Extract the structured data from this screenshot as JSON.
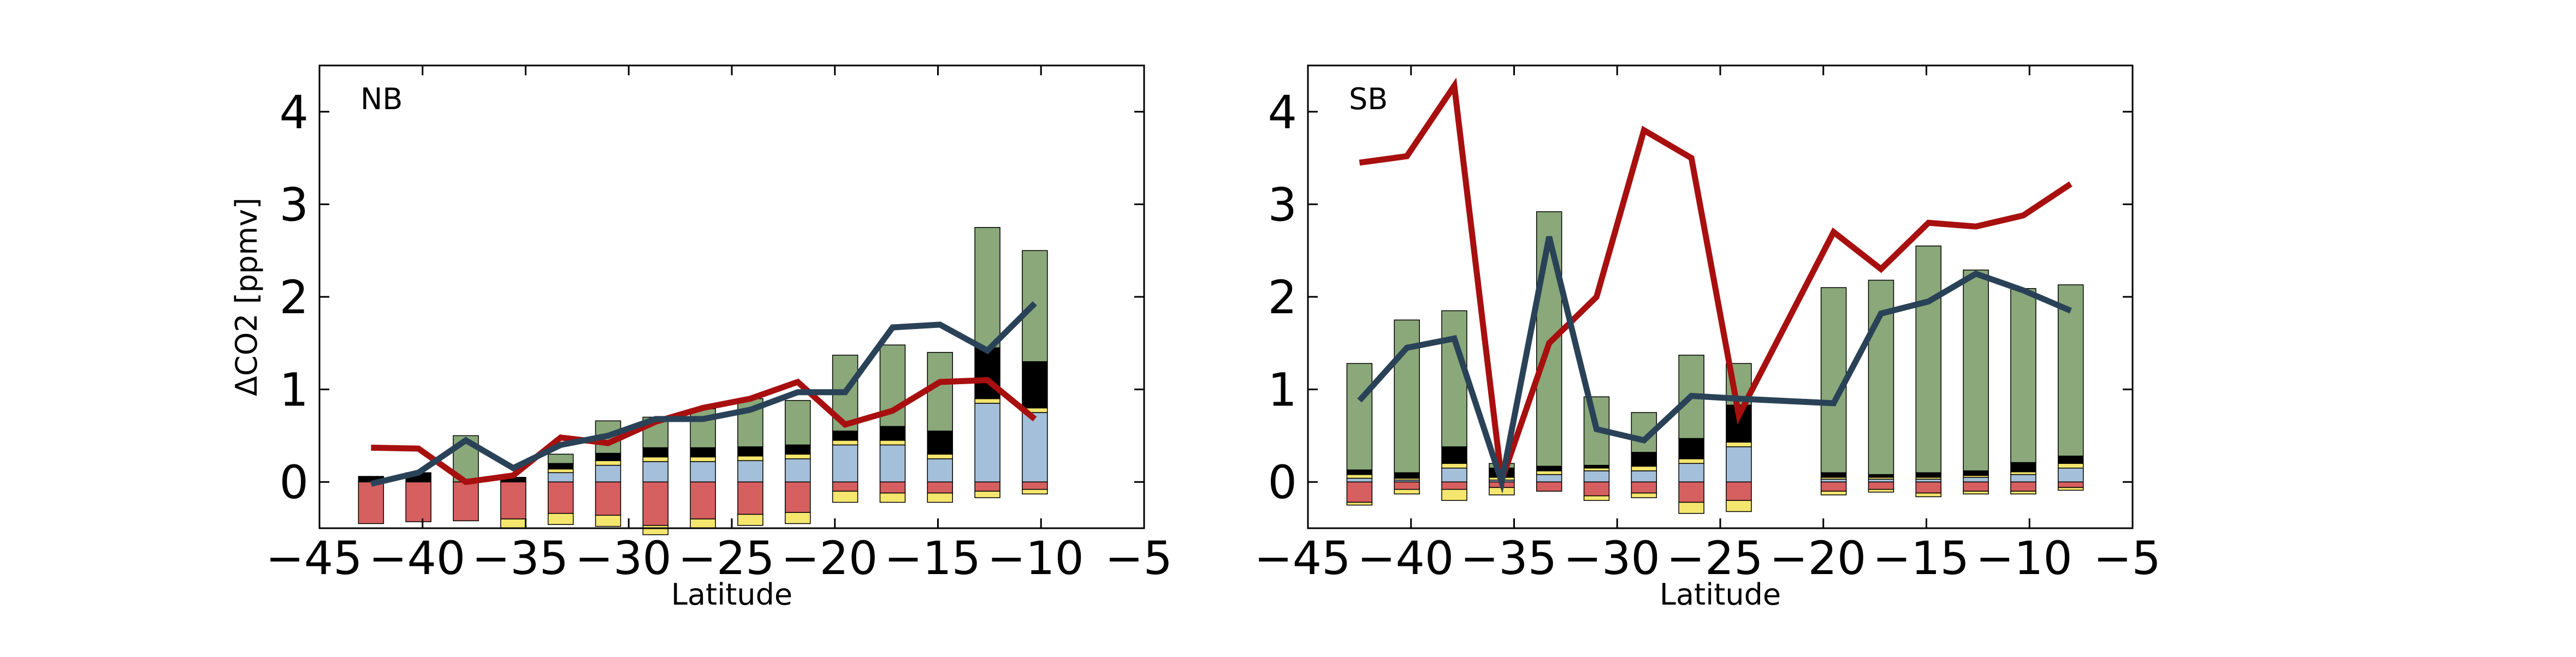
{
  "chart_data": [
    {
      "type": "bar",
      "panel_label": "NB",
      "xlabel": "Latitude",
      "ylabel": "ΔCO2 [ppmv]",
      "xlim": [
        -45,
        -5
      ],
      "ylim": [
        -0.5,
        4.5
      ],
      "xticks": [
        "−45",
        "−40",
        "−35",
        "−30",
        "−25",
        "−20",
        "−15",
        "−10",
        "−5"
      ],
      "yticks": [
        "0",
        "1",
        "2",
        "3",
        "4"
      ],
      "grid": false,
      "legend": "none",
      "bar_x": [
        -42.5,
        -40.2,
        -37.9,
        -35.6,
        -33.3,
        -31.0,
        -28.7,
        -26.4,
        -24.1,
        -21.8,
        -19.5,
        -17.2,
        -14.9,
        -12.6,
        -10.3
      ],
      "stack_components": [
        {
          "color": "#d65f5f",
          "values": [
            -0.45,
            -0.43,
            -0.42,
            -0.4,
            -0.34,
            -0.36,
            -0.47,
            -0.4,
            -0.35,
            -0.33,
            -0.1,
            -0.12,
            -0.12,
            -0.1,
            -0.08
          ]
        },
        {
          "color": "#f5e66e",
          "values": [
            0.0,
            0.0,
            0.0,
            -0.1,
            -0.12,
            -0.12,
            -0.1,
            -0.1,
            -0.12,
            -0.12,
            -0.12,
            -0.1,
            -0.1,
            -0.07,
            -0.05
          ]
        },
        {
          "color": "#a4bfd9",
          "values": [
            0.0,
            0.0,
            0.0,
            0.0,
            0.1,
            0.18,
            0.22,
            0.22,
            0.23,
            0.25,
            0.4,
            0.4,
            0.25,
            0.85,
            0.75
          ]
        },
        {
          "color": "#f5e66e",
          "values": [
            0.0,
            0.0,
            0.0,
            0.0,
            0.04,
            0.05,
            0.05,
            0.05,
            0.05,
            0.05,
            0.05,
            0.05,
            0.05,
            0.05,
            0.05
          ]
        },
        {
          "color": "#000000",
          "values": [
            0.06,
            0.1,
            0.0,
            0.05,
            0.06,
            0.08,
            0.1,
            0.1,
            0.1,
            0.1,
            0.1,
            0.15,
            0.25,
            0.55,
            0.5
          ]
        },
        {
          "color": "#8aa87a",
          "values": [
            0.0,
            0.0,
            0.5,
            0.0,
            0.1,
            0.35,
            0.33,
            0.42,
            0.52,
            0.48,
            0.82,
            0.88,
            0.85,
            1.3,
            1.2
          ]
        }
      ],
      "series": [
        {
          "color": "#a80f0f",
          "x": [
            -42.5,
            -40.2,
            -37.9,
            -35.6,
            -33.3,
            -31.0,
            -28.7,
            -26.4,
            -24.1,
            -21.8,
            -19.5,
            -17.2,
            -14.9,
            -12.6,
            -10.3
          ],
          "values": [
            0.37,
            0.36,
            0.0,
            0.07,
            0.48,
            0.42,
            0.65,
            0.8,
            0.9,
            1.08,
            0.62,
            0.77,
            1.08,
            1.1,
            0.68
          ]
        },
        {
          "color": "#2a4257",
          "x": [
            -42.5,
            -40.2,
            -37.9,
            -35.6,
            -33.3,
            -31.0,
            -28.7,
            -26.4,
            -24.1,
            -21.8,
            -19.5,
            -17.2,
            -14.9,
            -12.6,
            -10.3
          ],
          "values": [
            -0.02,
            0.1,
            0.45,
            0.15,
            0.4,
            0.5,
            0.68,
            0.68,
            0.78,
            0.97,
            0.97,
            1.67,
            1.7,
            1.42,
            1.93
          ]
        }
      ]
    },
    {
      "type": "bar",
      "panel_label": "SB",
      "xlabel": "Latitude",
      "ylabel": "",
      "xlim": [
        -45,
        -5
      ],
      "ylim": [
        -0.5,
        4.5
      ],
      "xticks": [
        "−45",
        "−40",
        "−35",
        "−30",
        "−25",
        "−20",
        "−15",
        "−10",
        "−5"
      ],
      "yticks": [
        "0",
        "1",
        "2",
        "3",
        "4"
      ],
      "grid": false,
      "legend": "none",
      "bar_x": [
        -42.5,
        -40.2,
        -37.9,
        -35.6,
        -33.3,
        -31.0,
        -28.7,
        -26.4,
        -24.1,
        -19.5,
        -17.2,
        -14.9,
        -12.6,
        -10.3,
        -8.0
      ],
      "stack_components": [
        {
          "color": "#d65f5f",
          "values": [
            -0.22,
            -0.08,
            -0.08,
            -0.06,
            -0.1,
            -0.15,
            -0.12,
            -0.22,
            -0.2,
            -0.1,
            -0.08,
            -0.12,
            -0.1,
            -0.1,
            -0.06
          ]
        },
        {
          "color": "#f5e66e",
          "values": [
            -0.03,
            -0.05,
            -0.12,
            -0.08,
            0.0,
            -0.05,
            -0.05,
            -0.12,
            -0.12,
            -0.04,
            -0.03,
            -0.04,
            -0.03,
            -0.03,
            -0.03
          ]
        },
        {
          "color": "#a4bfd9",
          "values": [
            0.04,
            0.02,
            0.15,
            0.02,
            0.08,
            0.12,
            0.12,
            0.2,
            0.38,
            0.03,
            0.03,
            0.03,
            0.05,
            0.08,
            0.15
          ]
        },
        {
          "color": "#f5e66e",
          "values": [
            0.04,
            0.02,
            0.05,
            0.03,
            0.04,
            0.03,
            0.05,
            0.05,
            0.05,
            0.02,
            0.02,
            0.02,
            0.02,
            0.03,
            0.05
          ]
        },
        {
          "color": "#000000",
          "values": [
            0.05,
            0.06,
            0.18,
            0.1,
            0.05,
            0.03,
            0.15,
            0.22,
            0.4,
            0.05,
            0.03,
            0.05,
            0.05,
            0.1,
            0.08
          ]
        },
        {
          "color": "#8aa87a",
          "values": [
            1.15,
            1.65,
            1.47,
            0.05,
            2.75,
            0.74,
            0.43,
            0.9,
            0.45,
            2.0,
            2.1,
            2.45,
            2.17,
            1.88,
            1.85
          ]
        }
      ],
      "series": [
        {
          "color": "#a80f0f",
          "x": [
            -42.5,
            -40.2,
            -37.9,
            -35.6,
            -33.3,
            -31.0,
            -28.7,
            -26.4,
            -24.1,
            -19.5,
            -17.2,
            -14.9,
            -12.6,
            -10.3,
            -8.0
          ],
          "values": [
            3.45,
            3.52,
            4.28,
            0.02,
            1.5,
            2.0,
            3.8,
            3.5,
            0.72,
            2.7,
            2.3,
            2.8,
            2.76,
            2.88,
            3.22
          ]
        },
        {
          "color": "#2a4257",
          "x": [
            -42.5,
            -40.2,
            -37.9,
            -35.6,
            -33.3,
            -31.0,
            -28.7,
            -26.4,
            -24.1,
            -19.5,
            -17.2,
            -14.9,
            -12.6,
            -10.3,
            -8.0
          ],
          "values": [
            0.88,
            1.45,
            1.55,
            0.0,
            2.65,
            0.57,
            0.45,
            0.93,
            0.9,
            0.85,
            1.82,
            1.95,
            2.25,
            2.07,
            1.85
          ]
        }
      ]
    }
  ]
}
